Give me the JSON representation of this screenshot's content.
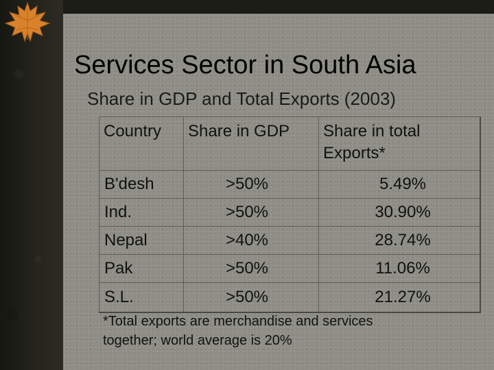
{
  "slide": {
    "title": "Services Sector in South Asia",
    "subtitle": "Share in GDP and Total Exports (2003)"
  },
  "table": {
    "headers": {
      "country": "Country",
      "gdp": "Share in GDP",
      "exports_line1": "Share in total",
      "exports_line2": "Exports*"
    },
    "rows": [
      {
        "country": "B'desh",
        "gdp": ">50%",
        "exports": "5.49%"
      },
      {
        "country": "Ind.",
        "gdp": ">50%",
        "exports": "30.90%"
      },
      {
        "country": "Nepal",
        "gdp": ">40%",
        "exports": "28.74%"
      },
      {
        "country": "Pak",
        "gdp": ">50%",
        "exports": "11.06%"
      },
      {
        "country": "S.L.",
        "gdp": ">50%",
        "exports": "21.27%"
      }
    ]
  },
  "footnote": {
    "line1": "*Total exports are merchandise and services",
    "line2": "together; world average is 20%"
  },
  "decor": {
    "leaf_icon": "maple-leaf-icon",
    "leaf_color": "#d9822b",
    "panel_color": "#8e8e86"
  }
}
